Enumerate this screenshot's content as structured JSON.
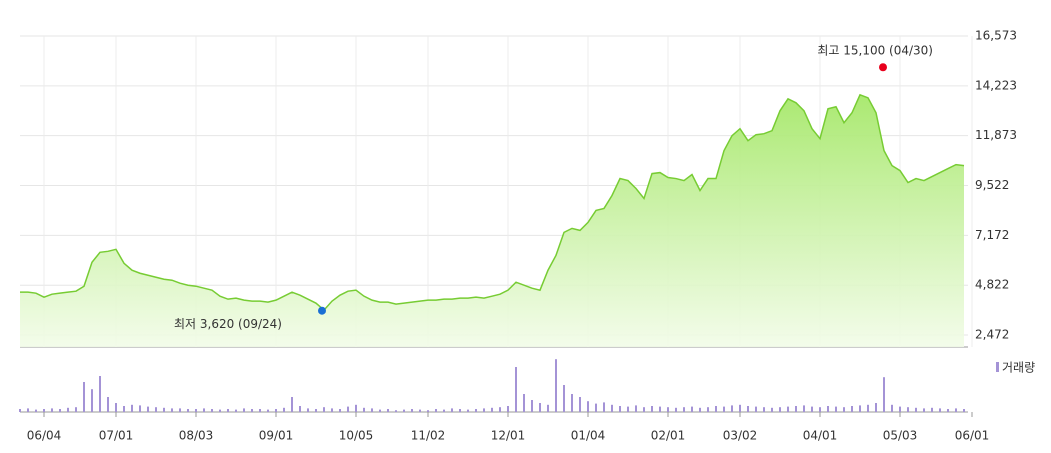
{
  "chart_data": {
    "type": "line",
    "color": "#77cc33",
    "fill_color": "#b8ee88",
    "grid": true,
    "ylim": [
      1908,
      16573
    ],
    "yticks": [
      {
        "value": 2472,
        "label": "2,472"
      },
      {
        "value": 4822,
        "label": "4,822"
      },
      {
        "value": 7172,
        "label": "7,172"
      },
      {
        "value": 9522,
        "label": "9,522"
      },
      {
        "value": 11873,
        "label": "11,873"
      },
      {
        "value": 14223,
        "label": "14,223"
      },
      {
        "value": 16573,
        "label": "16,573"
      }
    ],
    "categories": [
      null,
      null,
      null,
      "06/04",
      null,
      null,
      null,
      null,
      null,
      null,
      null,
      null,
      "07/01",
      null,
      null,
      null,
      null,
      null,
      null,
      null,
      null,
      null,
      "08/03",
      null,
      null,
      null,
      null,
      null,
      null,
      null,
      null,
      null,
      "09/01",
      null,
      null,
      null,
      null,
      null,
      null,
      null,
      null,
      null,
      "10/05",
      null,
      null,
      null,
      null,
      null,
      null,
      null,
      null,
      "11/02",
      null,
      null,
      null,
      null,
      null,
      null,
      null,
      null,
      null,
      "12/01",
      null,
      null,
      null,
      null,
      null,
      null,
      null,
      null,
      null,
      "01/04",
      null,
      null,
      null,
      null,
      null,
      null,
      null,
      null,
      null,
      "02/01",
      null,
      null,
      null,
      null,
      null,
      null,
      null,
      null,
      "03/02",
      null,
      null,
      null,
      null,
      null,
      null,
      null,
      null,
      null,
      "04/01",
      null,
      null,
      null,
      null,
      null,
      null,
      null,
      null,
      null,
      "05/03",
      null,
      null,
      null,
      null,
      null,
      null,
      null,
      null,
      "06/01"
    ],
    "values": [
      4493,
      4493,
      4446,
      4258,
      4399,
      4446,
      4493,
      4540,
      4775,
      5903,
      6373,
      6420,
      6514,
      5856,
      5527,
      5386,
      5292,
      5198,
      5104,
      5057,
      4916,
      4822,
      4775,
      4681,
      4587,
      4305,
      4164,
      4211,
      4117,
      4070,
      4070,
      4023,
      4117,
      4305,
      4493,
      4352,
      4164,
      3976,
      3647,
      4070,
      4352,
      4540,
      4587,
      4305,
      4117,
      4023,
      4023,
      3929,
      3976,
      4023,
      4070,
      4117,
      4117,
      4164,
      4164,
      4211,
      4211,
      4258,
      4211,
      4305,
      4399,
      4587,
      4963,
      4822,
      4681,
      4587,
      5527,
      6232,
      7313,
      7501,
      7407,
      7783,
      8347,
      8441,
      9052,
      9851,
      9757,
      9381,
      8911,
      10086,
      10133,
      9898,
      9851,
      9757,
      10039,
      9287,
      9851,
      9851,
      11167,
      11872,
      12201,
      11637,
      11919,
      11966,
      12107,
      13047,
      13611,
      13423,
      13047,
      12201,
      11731,
      13141,
      13235,
      12483,
      12953,
      13799,
      13658,
      12953,
      11167,
      10462,
      10227,
      9663,
      9851,
      9757,
      9945,
      10133,
      10321,
      10509,
      10462,
      null
    ],
    "annotations": [
      {
        "text": "최고 15,100 (04/30)",
        "value": 15100,
        "color": "#e8001c"
      },
      {
        "text": "최저 3,620 (09/24)",
        "value": 3620,
        "color": "#1a6fd4"
      }
    ],
    "volume": {
      "name": "거래량",
      "color": "#a493d6",
      "ylim": [
        0,
        100
      ],
      "values": [
        5,
        6,
        4,
        5,
        6,
        5,
        7,
        8,
        50,
        38,
        60,
        25,
        15,
        10,
        12,
        11,
        9,
        8,
        7,
        6,
        6,
        5,
        5,
        6,
        5,
        4,
        5,
        4,
        6,
        5,
        5,
        4,
        5,
        7,
        25,
        10,
        6,
        5,
        8,
        6,
        5,
        9,
        12,
        7,
        6,
        4,
        5,
        3,
        4,
        5,
        4,
        3,
        5,
        4,
        6,
        5,
        4,
        5,
        6,
        7,
        8,
        10,
        75,
        30,
        20,
        15,
        12,
        88,
        45,
        30,
        25,
        18,
        14,
        16,
        12,
        10,
        9,
        11,
        8,
        10,
        9,
        8,
        7,
        8,
        9,
        7,
        8,
        10,
        9,
        11,
        12,
        10,
        9,
        8,
        7,
        8,
        9,
        10,
        11,
        9,
        8,
        10,
        9,
        8,
        10,
        11,
        12,
        15,
        58,
        12,
        9,
        8,
        7,
        6,
        7,
        6,
        5,
        6,
        5,
        null
      ]
    }
  }
}
